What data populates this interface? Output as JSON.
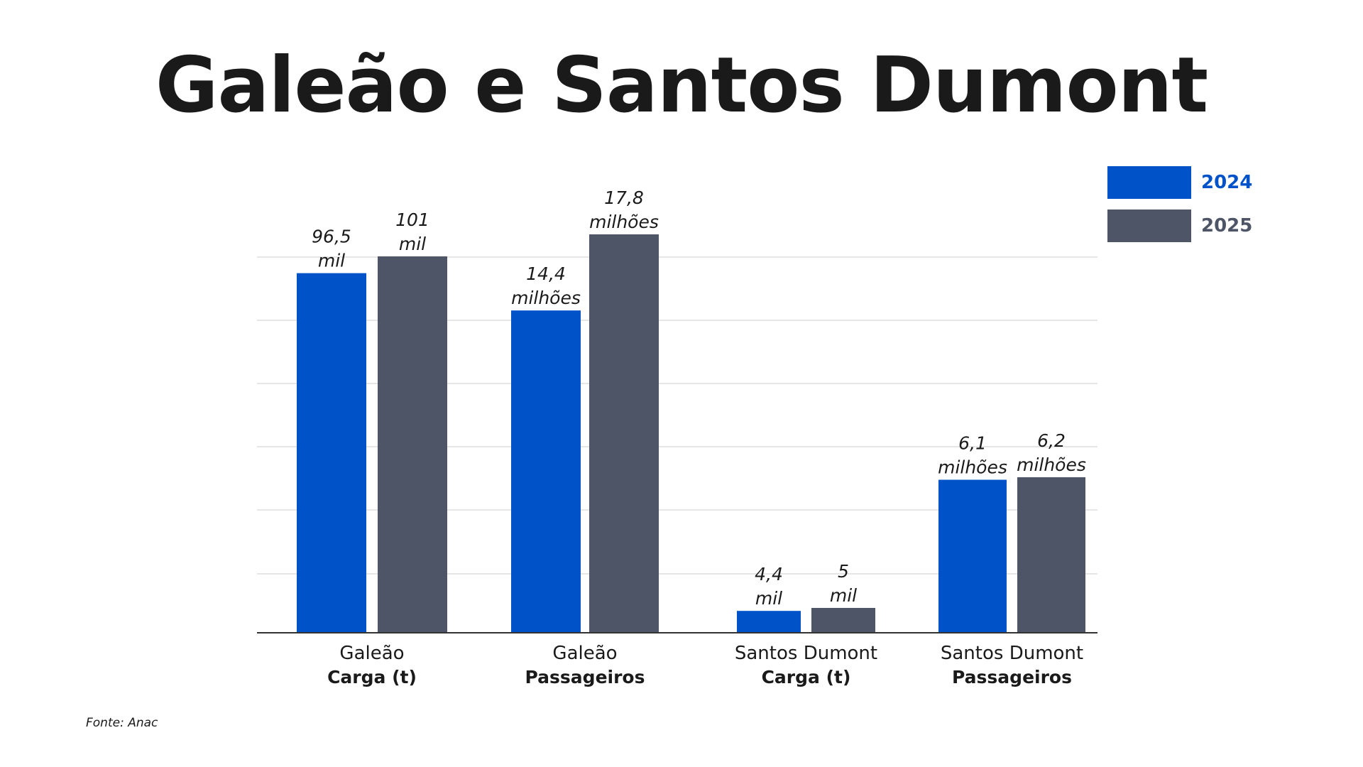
{
  "title": "Galeão e Santos Dumont",
  "source": "Fonte: Anac",
  "colors": {
    "2024": "#0052C8",
    "2025": "#4D5567",
    "grid": "#dddddd",
    "axis": "#333333",
    "text": "#1a1a1a"
  },
  "legend": [
    {
      "label": "2024",
      "color": "#0052C8"
    },
    {
      "label": "2025",
      "color": "#4D5567"
    }
  ],
  "chart_data": {
    "type": "bar",
    "title": "Galeão e Santos Dumont",
    "xlabel": "",
    "ylabel": "",
    "grid": true,
    "legend_position": "top-right",
    "categories": [
      {
        "line1": "Galeão",
        "line2": "Carga (t)"
      },
      {
        "line1": "Galeão",
        "line2": "Passageiros"
      },
      {
        "line1": "Santos Dumont",
        "line2": "Carga (t)"
      },
      {
        "line1": "Santos Dumont",
        "line2": "Passageiros"
      }
    ],
    "series": [
      {
        "name": "2024",
        "values": [
          96.5,
          14.4,
          4.4,
          6.1
        ],
        "labels": [
          [
            "96,5",
            "mil"
          ],
          [
            "14,4",
            "milhões"
          ],
          [
            "4,4",
            "mil"
          ],
          [
            "6,1",
            "milhões"
          ]
        ]
      },
      {
        "name": "2025",
        "values": [
          101,
          17.8,
          5,
          6.2
        ],
        "labels": [
          [
            "101",
            "mil"
          ],
          [
            "17,8",
            "milhões"
          ],
          [
            "5",
            "mil"
          ],
          [
            "6,2",
            "milhões"
          ]
        ]
      }
    ]
  }
}
